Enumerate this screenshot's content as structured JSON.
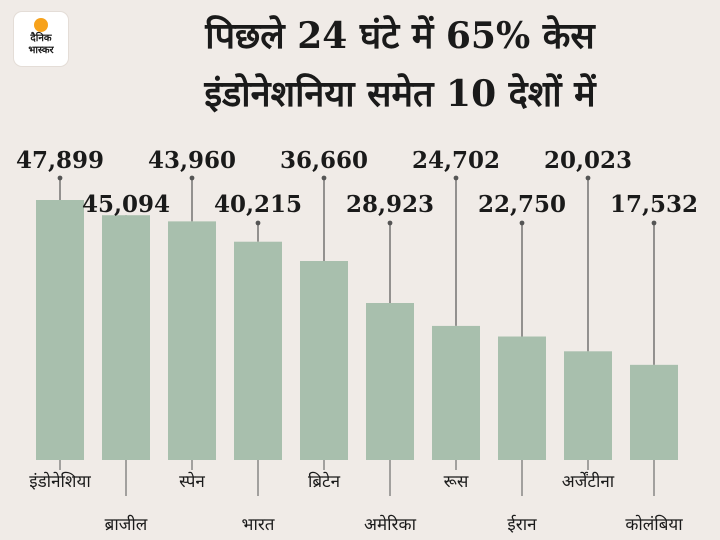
{
  "logo": {
    "line1": "दैनिक",
    "line2": "भास्कर",
    "sun_color": "#f7a21b"
  },
  "header": {
    "title_line1": "पिछले 24 घंटे में 65% केस",
    "title_line2": "इंडोनेशनिया समेत 10 देशों में"
  },
  "colors": {
    "bar": "#a8bfad",
    "background": "#f0ebe7",
    "text": "#1a1a1a",
    "leader": "#555555"
  },
  "chart_data": {
    "type": "bar",
    "categories": [
      "इंडोनेशिया",
      "ब्राजील",
      "स्पेन",
      "भारत",
      "ब्रिटेन",
      "अमेरिका",
      "रूस",
      "ईरान",
      "अर्जेंटीना",
      "कोलंबिया"
    ],
    "values": [
      47899,
      45094,
      43960,
      40215,
      36660,
      28923,
      24702,
      22750,
      20023,
      17532
    ],
    "value_labels": [
      "47,899",
      "45,094",
      "43,960",
      "40,215",
      "36,660",
      "28,923",
      "24,702",
      "22,750",
      "20,023",
      "17,532"
    ],
    "title": "पिछले 24 घंटे में 65% केस इंडोनेशनिया समेत 10 देशों में",
    "xlabel": "",
    "ylabel": "",
    "ylim": [
      0,
      50000
    ],
    "grid": false,
    "legend": "none"
  }
}
